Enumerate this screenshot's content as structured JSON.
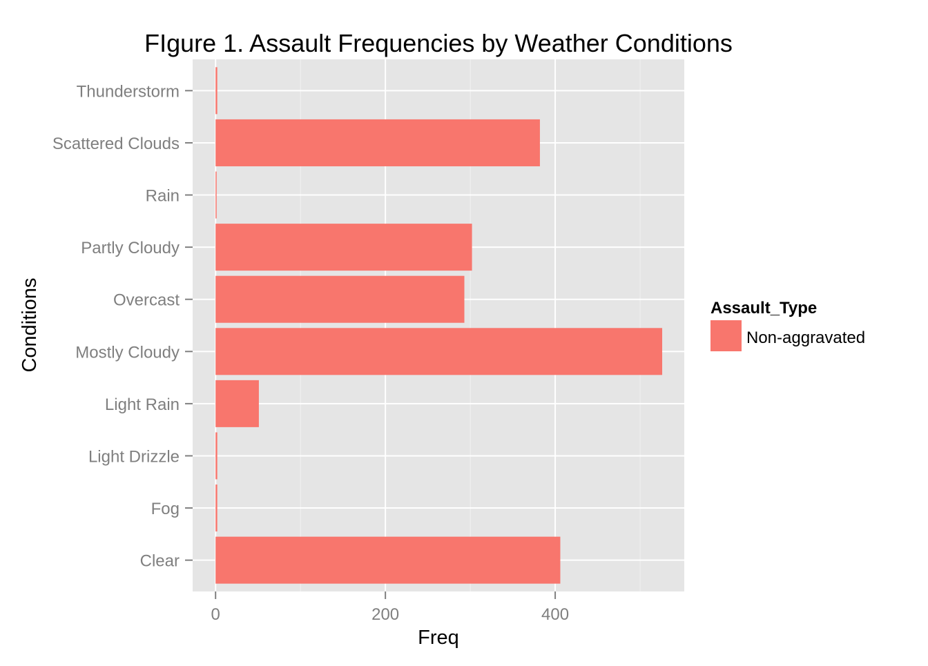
{
  "chart_data": {
    "type": "bar",
    "orientation": "horizontal",
    "title": "FIgure 1. Assault Frequencies by Weather Conditions",
    "xlabel": "Freq",
    "ylabel": "Conditions",
    "categories": [
      "Clear",
      "Fog",
      "Light Drizzle",
      "Light Rain",
      "Mostly Cloudy",
      "Overcast",
      "Partly Cloudy",
      "Rain",
      "Scattered Clouds",
      "Thunderstorm"
    ],
    "series": [
      {
        "name": "Non-aggravated",
        "values": [
          406,
          2,
          2,
          51,
          526,
          293,
          302,
          1,
          382,
          2
        ],
        "color": "#F8766D"
      }
    ],
    "xlim": [
      -27,
      552
    ],
    "x_ticks": [
      0,
      200,
      400
    ],
    "x_tick_labels": [
      "0",
      "200",
      "400"
    ],
    "grid": true,
    "legend": {
      "title": "Assault_Type",
      "position": "right",
      "entries": [
        "Non-aggravated"
      ]
    },
    "colors": {
      "panel_background": "#E5E5E5",
      "grid_major": "#FFFFFF",
      "grid_minor": "#F2F2F2",
      "tick_label": "#7F7F7F",
      "bar_fill": "#F8766D"
    }
  }
}
